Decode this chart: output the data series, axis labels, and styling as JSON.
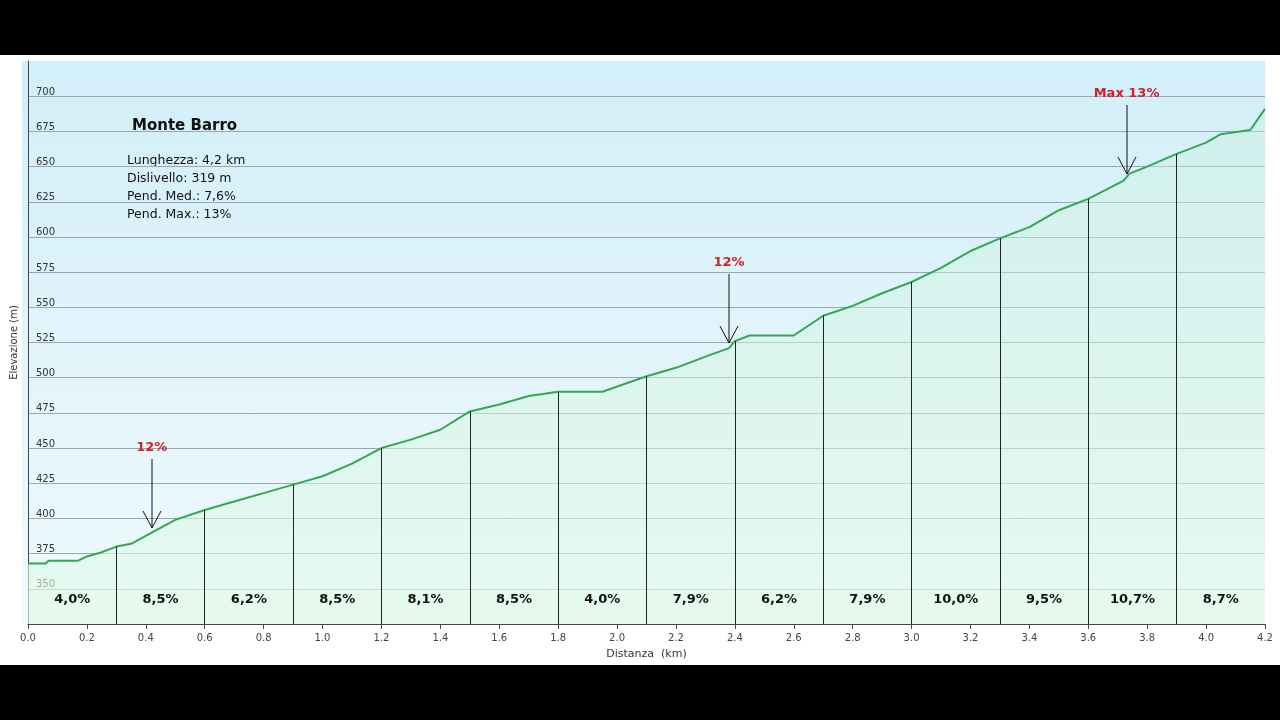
{
  "chart_data": {
    "type": "area",
    "title": "Monte Barro",
    "xlabel": "Distanza  (km)",
    "ylabel": "Elevazione (m)",
    "annotations": [
      "Lunghezza: 4,2 km",
      "Dislivello: 319 m",
      "Pend. Med.: 7,6%",
      "Pend. Max.: 13%",
      {
        "text": "12%",
        "x": 0.42,
        "y": 390
      },
      {
        "text": "12%",
        "x": 2.38,
        "y": 521
      },
      {
        "text": "Max 13%",
        "x": 3.73,
        "y": 641
      },
      "4,0%",
      "8,5%",
      "6,2%",
      "8,5%",
      "8,1%",
      "8,5%",
      "4,0%",
      "7,9%",
      "6,2%",
      "7,9%",
      "10,0%",
      "9,5%",
      "10,7%",
      "8,7%"
    ],
    "series": [
      {
        "color": "#33a852",
        "x": [
          0,
          0.06,
          0.07,
          0.17,
          0.2,
          0.25,
          0.3,
          0.35,
          0.42,
          0.5,
          0.6,
          0.7,
          0.8,
          0.9,
          1.0,
          1.1,
          1.2,
          1.3,
          1.4,
          1.5,
          1.6,
          1.7,
          1.8,
          1.95,
          2.1,
          2.2,
          2.3,
          2.38,
          2.4,
          2.45,
          2.6,
          2.7,
          2.8,
          2.9,
          3.0,
          3.1,
          3.2,
          3.3,
          3.4,
          3.5,
          3.6,
          3.72,
          3.74,
          3.8,
          3.9,
          4.0,
          4.05,
          4.15,
          4.2
        ],
        "values": [
          368,
          368,
          370,
          370,
          373,
          376,
          380,
          382,
          390,
          399,
          406,
          412,
          418,
          424,
          430,
          439,
          450,
          456,
          463,
          476,
          481,
          487,
          490,
          490,
          501,
          507,
          515,
          521,
          526,
          530,
          530,
          544,
          551,
          560,
          568,
          578,
          590,
          599,
          607,
          619,
          627,
          640,
          645,
          650,
          659,
          667,
          673,
          676,
          691
        ]
      }
    ],
    "ref_lines": [
      {
        "axis": "x",
        "value": 0.3
      },
      {
        "axis": "x",
        "value": 0.6
      },
      {
        "axis": "x",
        "value": 0.9
      },
      {
        "axis": "x",
        "value": 1.2
      },
      {
        "axis": "x",
        "value": 1.5
      },
      {
        "axis": "x",
        "value": 1.8
      },
      {
        "axis": "x",
        "value": 2.1
      },
      {
        "axis": "x",
        "value": 2.4
      },
      {
        "axis": "x",
        "value": 2.7
      },
      {
        "axis": "x",
        "value": 3.0
      },
      {
        "axis": "x",
        "value": 3.3
      },
      {
        "axis": "x",
        "value": 3.6
      },
      {
        "axis": "x",
        "value": 3.9
      }
    ],
    "xlim": [
      0,
      4.2
    ],
    "xticks": [
      {
        "value": 0,
        "label": "0.0"
      },
      0.2,
      0.4,
      0.6,
      0.8,
      {
        "value": 1,
        "label": "1.0"
      },
      1.2,
      1.4,
      1.6,
      1.8,
      {
        "value": 2,
        "label": "2.0"
      },
      2.2,
      2.4,
      2.6,
      2.8,
      {
        "value": 3,
        "label": "3.0"
      },
      3.2,
      3.4,
      3.6,
      3.8,
      {
        "value": 4,
        "label": "4.0"
      },
      4.2
    ],
    "ylim": [
      325,
      725
    ],
    "yticks": [
      350,
      375,
      400,
      425,
      450,
      475,
      500,
      525,
      550,
      575,
      600,
      625,
      650,
      675,
      700
    ],
    "grid": "y",
    "marker": "none",
    "line_style": "solid"
  }
}
